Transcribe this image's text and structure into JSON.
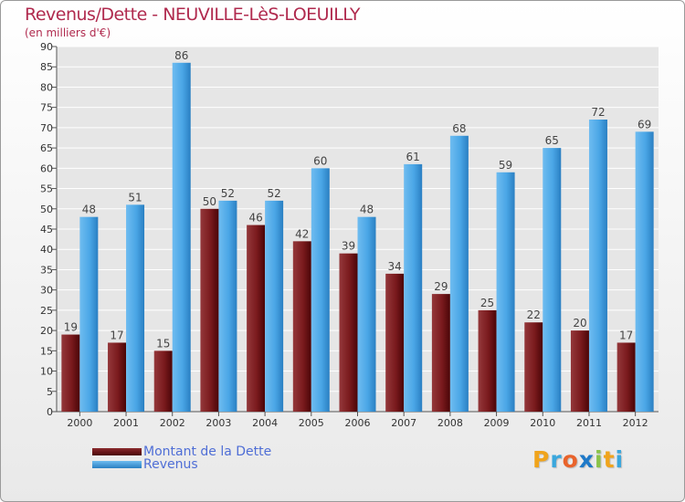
{
  "header": {
    "title": "Revenus/Dette - NEUVILLE-LèS-LOEUILLY",
    "subtitle": "(en milliers d'€)"
  },
  "legend": {
    "items": [
      {
        "label": "Montant de la Dette",
        "color": "#6b0e10"
      },
      {
        "label": "Revenus",
        "color": "#3f9ee0"
      }
    ]
  },
  "logo": {
    "letters": [
      "P",
      "r",
      "o",
      "x",
      "i",
      "t",
      "i"
    ],
    "colors": [
      "#f0a41c",
      "#3aa7dd",
      "#e9632b",
      "#1e79c8",
      "#8bc34a",
      "#f0a41c",
      "#3aa7dd"
    ]
  },
  "chart_data": {
    "type": "bar",
    "title": "Revenus/Dette - NEUVILLE-LèS-LOEUILLY",
    "subtitle": "(en milliers d'€)",
    "xlabel": "",
    "ylabel": "",
    "ylim": [
      0,
      90
    ],
    "yticks": [
      0,
      5,
      10,
      15,
      20,
      25,
      30,
      35,
      40,
      45,
      50,
      55,
      60,
      65,
      70,
      75,
      80,
      85,
      90
    ],
    "grid": true,
    "legend_position": "bottom-left",
    "categories": [
      "2000",
      "2001",
      "2002",
      "2003",
      "2004",
      "2005",
      "2006",
      "2007",
      "2008",
      "2009",
      "2010",
      "2011",
      "2012"
    ],
    "series": [
      {
        "name": "Montant de la Dette",
        "color": "#6b0e10",
        "values": [
          19,
          17,
          15,
          50,
          46,
          42,
          39,
          34,
          29,
          25,
          22,
          20,
          17
        ]
      },
      {
        "name": "Revenus",
        "color": "#3f9ee0",
        "values": [
          48,
          51,
          86,
          52,
          52,
          60,
          48,
          61,
          68,
          59,
          65,
          72,
          69
        ]
      }
    ]
  }
}
